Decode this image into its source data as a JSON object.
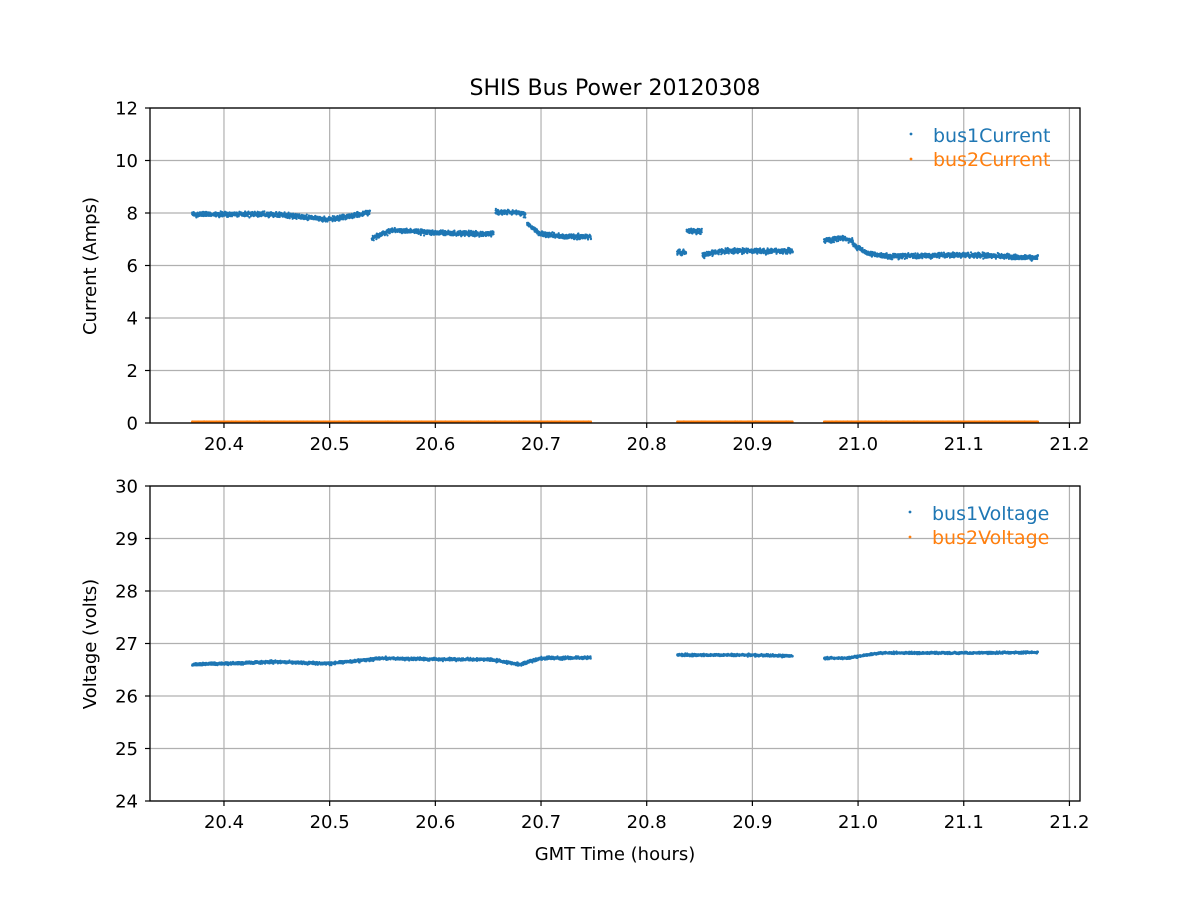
{
  "figure": {
    "title": "SHIS Bus Power 20120308"
  },
  "colors": {
    "series1": "#1f77b4",
    "series2": "#ff7f0e"
  },
  "chart_data": [
    {
      "type": "scatter",
      "title": "SHIS Bus Power 20120308",
      "xlabel": "",
      "ylabel": "Current (Amps)",
      "xlim": [
        20.33,
        21.21
      ],
      "ylim": [
        0,
        12
      ],
      "xticks": [
        20.4,
        20.5,
        20.6,
        20.7,
        20.8,
        20.9,
        21.0,
        21.1,
        21.2
      ],
      "xtick_labels": [
        "20.4",
        "20.5",
        "20.6",
        "20.7",
        "20.8",
        "20.9",
        "21.0",
        "21.1",
        "21.2"
      ],
      "yticks": [
        0,
        2,
        4,
        6,
        8,
        10,
        12
      ],
      "ytick_labels": [
        "0",
        "2",
        "4",
        "6",
        "8",
        "10",
        "12"
      ],
      "grid": true,
      "legend_position": "top-right",
      "series": [
        {
          "name": "bus1Current",
          "color": "#1f77b4",
          "segments": [
            {
              "x": [
                20.37,
                20.45,
                20.5,
                20.53,
                20.538
              ],
              "y": [
                7.95,
                7.95,
                7.75,
                7.95,
                8.05
              ],
              "spread": 0.28
            },
            {
              "x": [
                20.54,
                20.56,
                20.6,
                20.655
              ],
              "y": [
                7.05,
                7.35,
                7.25,
                7.2
              ],
              "spread": 0.28
            },
            {
              "x": [
                20.657,
                20.68,
                20.685
              ],
              "y": [
                8.05,
                8.0,
                7.95
              ],
              "spread": 0.28
            },
            {
              "x": [
                20.687,
                20.7,
                20.72,
                20.747
              ],
              "y": [
                7.6,
                7.2,
                7.1,
                7.1
              ],
              "spread": 0.28
            },
            {
              "x": [
                20.829,
                20.837
              ],
              "y": [
                6.5,
                6.5
              ],
              "spread": 0.3
            },
            {
              "x": [
                20.838,
                20.852
              ],
              "y": [
                7.3,
                7.3
              ],
              "spread": 0.3
            },
            {
              "x": [
                20.853,
                20.87,
                20.938
              ],
              "y": [
                6.4,
                6.55,
                6.55
              ],
              "spread": 0.28
            },
            {
              "x": [
                20.968,
                20.985,
                20.995
              ],
              "y": [
                6.95,
                7.05,
                6.95
              ],
              "spread": 0.28
            },
            {
              "x": [
                20.995,
                21.01,
                21.03,
                21.1,
                21.17
              ],
              "y": [
                6.8,
                6.45,
                6.35,
                6.4,
                6.3
              ],
              "spread": 0.28
            }
          ]
        },
        {
          "name": "bus2Current",
          "color": "#ff7f0e",
          "segments": [
            {
              "x": [
                20.37,
                20.747
              ],
              "y": [
                0.05,
                0.05
              ],
              "spread": 0.02
            },
            {
              "x": [
                20.829,
                20.938
              ],
              "y": [
                0.05,
                0.05
              ],
              "spread": 0.02
            },
            {
              "x": [
                20.968,
                21.17
              ],
              "y": [
                0.05,
                0.05
              ],
              "spread": 0.02
            }
          ]
        }
      ]
    },
    {
      "type": "scatter",
      "title": "",
      "xlabel": "GMT Time (hours)",
      "ylabel": "Voltage (volts)",
      "xlim": [
        20.33,
        21.21
      ],
      "ylim": [
        24,
        30
      ],
      "xticks": [
        20.4,
        20.5,
        20.6,
        20.7,
        20.8,
        20.9,
        21.0,
        21.1,
        21.2
      ],
      "xtick_labels": [
        "20.4",
        "20.5",
        "20.6",
        "20.7",
        "20.8",
        "20.9",
        "21.0",
        "21.1",
        "21.2"
      ],
      "yticks": [
        24,
        25,
        26,
        27,
        28,
        29,
        30
      ],
      "ytick_labels": [
        "24",
        "25",
        "26",
        "27",
        "28",
        "29",
        "30"
      ],
      "grid": true,
      "legend_position": "top-right",
      "series": [
        {
          "name": "bus1Voltage",
          "color": "#1f77b4",
          "segments": [
            {
              "x": [
                20.37,
                20.45,
                20.5,
                20.55,
                20.6,
                20.65,
                20.68,
                20.7,
                20.747
              ],
              "y": [
                26.6,
                26.65,
                26.62,
                26.72,
                26.7,
                26.7,
                26.6,
                26.72,
                26.73
              ],
              "spread": 0.08
            },
            {
              "x": [
                20.829,
                20.85,
                20.9,
                20.938
              ],
              "y": [
                26.78,
                26.78,
                26.78,
                26.76
              ],
              "spread": 0.07
            },
            {
              "x": [
                20.968,
                20.99,
                21.02,
                21.1,
                21.17
              ],
              "y": [
                26.72,
                26.72,
                26.82,
                26.82,
                26.83
              ],
              "spread": 0.06
            }
          ]
        },
        {
          "name": "bus2Voltage",
          "color": "#ff7f0e",
          "segments": []
        }
      ]
    }
  ]
}
